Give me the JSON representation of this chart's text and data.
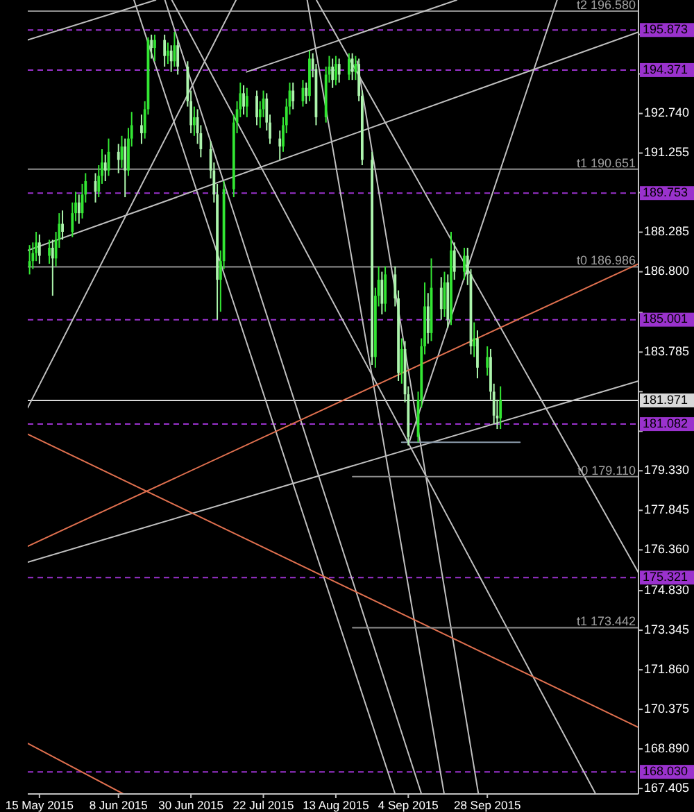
{
  "chart_data": {
    "type": "candlestick",
    "colors": [
      "#33e633",
      "#33e633",
      "#33e633",
      "#adf5ad",
      "#33e633",
      "#adf5ad",
      "#33e633",
      "#33e633",
      "#adf5ad",
      "#33e633",
      "#33e633",
      "#adf5ad",
      "#33e633",
      "#33e633",
      "#adf5ad",
      "#33e633",
      "#33e633",
      "#adf5ad",
      "#33e633",
      "#adf5ad",
      "#33e633",
      "#adf5ad",
      "#33e633",
      "#33e633",
      "#adf5ad",
      "#33e633",
      "#33e633",
      "#adf5ad",
      "#33e633",
      "#adf5ad",
      "#33e633",
      "#adf5ad",
      "#33e633",
      "#adf5ad",
      "#adf5ad",
      "#adf5ad",
      "#33e633",
      "#adf5ad",
      "#adf5ad",
      "#adf5ad",
      "#adf5ad",
      "#adf5ad",
      "#33e633",
      "#33e633",
      "#33e633",
      "#33e633",
      "#33e633",
      "#adf5ad",
      "#33e633",
      "#adf5ad",
      "#33e633",
      "#33e633",
      "#adf5ad",
      "#adf5ad",
      "#adf5ad",
      "#33e633",
      "#33e633",
      "#33e633",
      "#adf5ad",
      "#33e633",
      "#adf5ad",
      "#33e633",
      "#adf5ad",
      "#adf5ad",
      "#33e633",
      "#33e633",
      "#adf5ad",
      "#33e633",
      "#adf5ad",
      "#33e633",
      "#adf5ad",
      "#33e633",
      "#adf5ad",
      "#adf5ad",
      "#adf5ad",
      "#33e633",
      "#33e633",
      "#adf5ad",
      "#33e633",
      "#adf5ad",
      "#adf5ad",
      "#33e633",
      "#adf5ad",
      "#adf5ad",
      "#33e633",
      "#33e633",
      "#33e633",
      "#adf5ad",
      "#33e633",
      "#adf5ad",
      "#33e633",
      "#adf5ad",
      "#33e633",
      "#adf5ad",
      "#33e633",
      "#adf5ad",
      "#adf5ad",
      "#33e633",
      "#adf5ad",
      "#33e633",
      "#adf5ad",
      "#adf5ad",
      "#adf5ad",
      "#33e633"
    ],
    "x": [
      "2015-05-12",
      "2015-05-13",
      "2015-05-14",
      "2015-05-15",
      "2015-05-18",
      "2015-05-19",
      "2015-05-20",
      "2015-05-21",
      "2015-05-22",
      "2015-05-25",
      "2015-05-26",
      "2015-05-27",
      "2015-05-28",
      "2015-05-29",
      "2015-06-01",
      "2015-06-02",
      "2015-06-03",
      "2015-06-04",
      "2015-06-05",
      "2015-06-08",
      "2015-06-09",
      "2015-06-10",
      "2015-06-11",
      "2015-06-12",
      "2015-06-15",
      "2015-06-16",
      "2015-06-17",
      "2015-06-18",
      "2015-06-19",
      "2015-06-22",
      "2015-06-23",
      "2015-06-24",
      "2015-06-25",
      "2015-06-26",
      "2015-06-29",
      "2015-06-30",
      "2015-07-01",
      "2015-07-02",
      "2015-07-03",
      "2015-07-06",
      "2015-07-07",
      "2015-07-08",
      "2015-07-09",
      "2015-07-10",
      "2015-07-13",
      "2015-07-14",
      "2015-07-15",
      "2015-07-16",
      "2015-07-17",
      "2015-07-20",
      "2015-07-21",
      "2015-07-22",
      "2015-07-23",
      "2015-07-24",
      "2015-07-27",
      "2015-07-28",
      "2015-07-29",
      "2015-07-30",
      "2015-07-31",
      "2015-08-03",
      "2015-08-04",
      "2015-08-05",
      "2015-08-06",
      "2015-08-07",
      "2015-08-10",
      "2015-08-11",
      "2015-08-12",
      "2015-08-13",
      "2015-08-14",
      "2015-08-17",
      "2015-08-18",
      "2015-08-19",
      "2015-08-20",
      "2015-08-21",
      "2015-08-24",
      "2015-08-25",
      "2015-08-26",
      "2015-08-27",
      "2015-08-28",
      "2015-08-31",
      "2015-09-01",
      "2015-09-02",
      "2015-09-03",
      "2015-09-04",
      "2015-09-07",
      "2015-09-08",
      "2015-09-09",
      "2015-09-10",
      "2015-09-11",
      "2015-09-14",
      "2015-09-15",
      "2015-09-16",
      "2015-09-17",
      "2015-09-18",
      "2015-09-21",
      "2015-09-22",
      "2015-09-23",
      "2015-09-24",
      "2015-09-25",
      "2015-09-28",
      "2015-09-29",
      "2015-09-30",
      "2015-10-01",
      "2015-10-02"
    ],
    "ohlc": [
      [
        187.0,
        187.8,
        186.7,
        187.2
      ],
      [
        187.2,
        187.9,
        186.9,
        187.5
      ],
      [
        187.5,
        188.3,
        187.2,
        187.9
      ],
      [
        187.9,
        188.2,
        187.1,
        187.4
      ],
      [
        187.4,
        188.0,
        187.1,
        187.7
      ],
      [
        187.7,
        188.0,
        185.9,
        187.3
      ],
      [
        187.3,
        188.3,
        187.0,
        188.0
      ],
      [
        188.0,
        189.0,
        187.7,
        188.6
      ],
      [
        188.6,
        189.1,
        188.0,
        188.3
      ],
      [
        188.3,
        189.4,
        188.1,
        189.0
      ],
      [
        189.0,
        189.8,
        188.7,
        189.4
      ],
      [
        189.4,
        189.7,
        188.6,
        189.0
      ],
      [
        189.0,
        190.1,
        188.8,
        189.7
      ],
      [
        189.7,
        190.5,
        189.4,
        190.2
      ],
      [
        190.2,
        190.5,
        189.4,
        189.8
      ],
      [
        189.8,
        190.8,
        189.6,
        190.4
      ],
      [
        190.4,
        191.4,
        190.1,
        190.9
      ],
      [
        190.9,
        191.2,
        190.2,
        190.6
      ],
      [
        190.6,
        191.8,
        190.4,
        191.3
      ],
      [
        191.3,
        191.6,
        190.5,
        191.0
      ],
      [
        191.0,
        191.9,
        190.7,
        191.5
      ],
      [
        191.5,
        191.8,
        189.6,
        190.6
      ],
      [
        190.6,
        192.2,
        190.4,
        191.8
      ],
      [
        191.8,
        192.8,
        191.5,
        192.3
      ],
      [
        192.3,
        192.7,
        191.6,
        192.0
      ],
      [
        192.0,
        193.2,
        191.8,
        192.9
      ],
      [
        192.9,
        195.6,
        192.7,
        195.5
      ],
      [
        195.5,
        195.7,
        194.8,
        195.2
      ],
      [
        195.2,
        195.7,
        194.7,
        195.5
      ],
      [
        195.5,
        195.7,
        194.5,
        194.9
      ],
      [
        194.9,
        195.4,
        194.6,
        195.1
      ],
      [
        195.1,
        195.3,
        194.3,
        194.7
      ],
      [
        194.7,
        195.8,
        194.5,
        195.3
      ],
      [
        195.3,
        195.5,
        194.2,
        194.5
      ],
      [
        194.5,
        194.7,
        193.0,
        193.2
      ],
      [
        193.2,
        193.6,
        192.0,
        192.3
      ],
      [
        192.3,
        193.0,
        191.9,
        192.6
      ],
      [
        192.6,
        192.9,
        191.6,
        192.0
      ],
      [
        192.0,
        192.3,
        191.1,
        191.4
      ],
      [
        191.4,
        191.7,
        190.3,
        190.6
      ],
      [
        190.6,
        190.9,
        189.4,
        189.7
      ],
      [
        189.7,
        190.1,
        185.0,
        186.5
      ],
      [
        186.5,
        187.6,
        185.3,
        187.2
      ],
      [
        187.2,
        190.2,
        186.9,
        189.9
      ],
      [
        189.9,
        192.7,
        189.6,
        192.4
      ],
      [
        192.4,
        193.2,
        192.0,
        192.9
      ],
      [
        192.9,
        193.9,
        192.6,
        193.5
      ],
      [
        193.5,
        193.8,
        192.7,
        193.0
      ],
      [
        193.0,
        193.7,
        192.6,
        193.4
      ],
      [
        193.4,
        193.6,
        192.3,
        192.6
      ],
      [
        192.6,
        193.2,
        192.2,
        192.9
      ],
      [
        192.9,
        193.6,
        192.6,
        193.3
      ],
      [
        193.3,
        193.5,
        192.1,
        192.4
      ],
      [
        192.4,
        192.7,
        191.6,
        191.8
      ],
      [
        191.8,
        192.1,
        191.0,
        191.5
      ],
      [
        191.5,
        192.6,
        191.3,
        192.3
      ],
      [
        192.3,
        193.3,
        192.0,
        193.0
      ],
      [
        193.0,
        193.9,
        192.7,
        193.6
      ],
      [
        193.6,
        193.9,
        192.9,
        193.2
      ],
      [
        193.2,
        194.0,
        193.0,
        193.7
      ],
      [
        193.7,
        193.9,
        193.1,
        193.4
      ],
      [
        193.4,
        195.1,
        193.2,
        194.8
      ],
      [
        194.8,
        195.0,
        194.1,
        194.4
      ],
      [
        194.4,
        194.6,
        192.3,
        192.6
      ],
      [
        192.6,
        194.5,
        192.4,
        194.2
      ],
      [
        194.2,
        194.9,
        193.9,
        194.5
      ],
      [
        194.5,
        194.8,
        193.7,
        194.0
      ],
      [
        194.0,
        194.9,
        193.8,
        194.6
      ],
      [
        194.6,
        194.8,
        193.9,
        194.2
      ],
      [
        194.2,
        195.0,
        194.0,
        194.8
      ],
      [
        194.8,
        195.0,
        194.0,
        194.3
      ],
      [
        194.3,
        194.9,
        194.0,
        194.6
      ],
      [
        194.6,
        194.8,
        193.2,
        193.4
      ],
      [
        193.4,
        193.6,
        190.8,
        191.0
      ],
      [
        191.0,
        191.3,
        183.3,
        183.6
      ],
      [
        183.6,
        186.2,
        183.2,
        185.9
      ],
      [
        185.9,
        187.0,
        185.5,
        186.5
      ],
      [
        186.5,
        186.8,
        185.2,
        185.6
      ],
      [
        185.6,
        187.0,
        185.3,
        186.7
      ],
      [
        186.7,
        187.0,
        185.5,
        185.8
      ],
      [
        185.8,
        186.1,
        182.7,
        183.0
      ],
      [
        183.0,
        184.3,
        182.6,
        183.9
      ],
      [
        183.9,
        184.2,
        181.9,
        182.2
      ],
      [
        182.2,
        182.5,
        180.3,
        180.6
      ],
      [
        180.6,
        182.3,
        180.4,
        182.0
      ],
      [
        182.0,
        184.3,
        181.7,
        184.0
      ],
      [
        184.0,
        186.4,
        183.7,
        185.5
      ],
      [
        185.5,
        186.0,
        184.1,
        184.5
      ],
      [
        184.5,
        187.3,
        184.2,
        186.2
      ],
      [
        186.2,
        186.6,
        185.0,
        185.4
      ],
      [
        185.4,
        186.8,
        185.1,
        186.4
      ],
      [
        186.4,
        186.7,
        184.7,
        185.0
      ],
      [
        185.0,
        188.3,
        184.8,
        187.6
      ],
      [
        187.6,
        187.9,
        186.5,
        186.8
      ],
      [
        186.8,
        187.7,
        186.5,
        187.4
      ],
      [
        187.4,
        187.7,
        186.3,
        186.7
      ],
      [
        186.7,
        186.9,
        183.7,
        184.0
      ],
      [
        184.0,
        184.9,
        183.6,
        184.3
      ],
      [
        184.3,
        184.6,
        182.8,
        183.2
      ],
      [
        183.2,
        184.0,
        182.9,
        183.6
      ],
      [
        183.6,
        183.9,
        182.0,
        182.3
      ],
      [
        182.3,
        182.6,
        181.1,
        181.4
      ],
      [
        181.4,
        182.0,
        180.9,
        181.3
      ],
      [
        181.3,
        182.5,
        180.9,
        182.0
      ]
    ],
    "xlim": [
      "2015-05-11T10:48",
      "2015-11-12T21:36"
    ],
    "ylim": [
      167.2,
      197.0
    ],
    "xticks": [
      {
        "value": "2015-05-15",
        "label": "15 May 2015"
      },
      {
        "value": "2015-06-08",
        "label": "8 Jun 2015"
      },
      {
        "value": "2015-06-30",
        "label": "30 Jun 2015"
      },
      {
        "value": "2015-07-22",
        "label": "22 Jul 2015"
      },
      {
        "value": "2015-08-13",
        "label": "13 Aug 2015"
      },
      {
        "value": "2015-09-04",
        "label": "4 Sep 2015"
      },
      {
        "value": "2015-09-28",
        "label": "28 Sep 2015"
      }
    ],
    "yticks": [
      {
        "value": 195.71,
        "label": null
      },
      {
        "value": 194.225,
        "label": null
      },
      {
        "value": 192.74,
        "label": "192.740"
      },
      {
        "value": 191.255,
        "label": "191.255"
      },
      {
        "value": 189.77,
        "label": null
      },
      {
        "value": 188.285,
        "label": "188.285"
      },
      {
        "value": 186.8,
        "label": "186.800"
      },
      {
        "value": 185.27,
        "label": null
      },
      {
        "value": 183.785,
        "label": "183.785"
      },
      {
        "value": 182.3,
        "label": null
      },
      {
        "value": 180.815,
        "label": null
      },
      {
        "value": 179.33,
        "label": "179.330"
      },
      {
        "value": 177.845,
        "label": "177.845"
      },
      {
        "value": 176.36,
        "label": "176.360"
      },
      {
        "value": 174.83,
        "label": "174.830"
      },
      {
        "value": 173.345,
        "label": "173.345"
      },
      {
        "value": 171.86,
        "label": "171.860"
      },
      {
        "value": 170.375,
        "label": "170.375"
      },
      {
        "value": 168.89,
        "label": "168.890"
      },
      {
        "value": 167.405,
        "label": "167.405"
      }
    ],
    "series": [
      {
        "type": "line",
        "color": "#c0c0c0",
        "x": [
          "2015-05-11T10:48",
          "2015-06-19T07:12"
        ],
        "values": [
          195.5,
          197.0
        ]
      },
      {
        "type": "line",
        "color": "#c0c0c0",
        "x": [
          "2015-05-11T10:48",
          "2015-11-12T21:36"
        ],
        "values": [
          187.6,
          195.8
        ]
      },
      {
        "type": "line",
        "color": "#c0c0c0",
        "x": [
          "2015-07-16T21:36",
          "2015-09-18T16:48"
        ],
        "values": [
          194.3,
          197.0
        ]
      },
      {
        "type": "line",
        "color": "#c0c0c0",
        "x": [
          "2015-05-11T10:48",
          "2015-11-12T21:36"
        ],
        "values": [
          175.9,
          182.7
        ]
      },
      {
        "type": "line",
        "color": "#c0c0c0",
        "x": [
          "2015-05-11T10:48",
          "2015-07-13T16:48"
        ],
        "values": [
          181.7,
          197.0
        ]
      },
      {
        "type": "line",
        "color": "#c0c0c0",
        "x": [
          "2015-06-12T16:48",
          "2015-08-31"
        ],
        "values": [
          197.0,
          167.2
        ]
      },
      {
        "type": "line",
        "color": "#c0c0c0",
        "x": [
          "2015-06-22T02:24",
          "2015-09-08"
        ],
        "values": [
          197.0,
          167.2
        ]
      },
      {
        "type": "line",
        "color": "#c0c0c0",
        "x": [
          "2015-06-24T04:48",
          "2015-10-30T21:36"
        ],
        "values": [
          197.0,
          167.2
        ]
      },
      {
        "type": "line",
        "color": "#c0c0c0",
        "x": [
          "2015-08-04T07:12",
          "2015-09-14T21:36"
        ],
        "values": [
          197.0,
          167.2
        ]
      },
      {
        "type": "line",
        "color": "#c0c0c0",
        "x": [
          "2015-08-07T02:24",
          "2015-11-12T21:36"
        ],
        "values": [
          197.0,
          175.5
        ]
      },
      {
        "type": "line",
        "color": "#c0c0c0",
        "x": [
          "2015-09-04",
          "2015-10-19T04:48"
        ],
        "values": [
          180.3,
          197.0
        ]
      },
      {
        "type": "line",
        "color": "#c0c0c0",
        "x": [
          "2015-08-19T12:00",
          "2015-09-25T07:12"
        ],
        "values": [
          194.7,
          167.2
        ]
      },
      {
        "type": "line",
        "color": "#e0704f",
        "x": [
          "2015-05-11T10:48",
          "2015-11-12T21:36"
        ],
        "values": [
          176.5,
          187.1
        ]
      },
      {
        "type": "line",
        "color": "#e0704f",
        "x": [
          "2015-05-11T10:48",
          "2015-11-12T21:36"
        ],
        "values": [
          180.7,
          169.7
        ]
      },
      {
        "type": "line",
        "color": "#e0704f",
        "x": [
          "2015-05-11T10:48",
          "2015-06-09T12:00"
        ],
        "values": [
          169.1,
          167.2
        ]
      },
      {
        "type": "line",
        "color": "#909090",
        "x": [
          "2015-08-18T02:24",
          "2015-11-12T21:36"
        ],
        "values": [
          179.11,
          179.11
        ]
      },
      {
        "type": "line",
        "color": "#909090",
        "x": [
          "2015-08-18T02:24",
          "2015-11-12T21:36"
        ],
        "values": [
          173.44,
          173.44
        ]
      },
      {
        "type": "line",
        "color": "#8c9cac",
        "x": [
          "2015-09-02",
          "2015-10-07T21:36"
        ],
        "values": [
          180.4,
          180.4
        ]
      }
    ],
    "ref_lines": [
      {
        "axis": "y",
        "value": 196.58,
        "color": "#909090",
        "line_style": "solid"
      },
      {
        "axis": "y",
        "value": 190.651,
        "color": "#909090",
        "line_style": "solid"
      },
      {
        "axis": "y",
        "value": 186.986,
        "color": "#909090",
        "line_style": "solid"
      },
      {
        "axis": "y",
        "value": 181.971,
        "label": "181.971",
        "color": "#d8d8d8",
        "line_style": "solid"
      },
      {
        "axis": "y",
        "value": 195.873,
        "label": "195.873",
        "color": "#9a32cd",
        "line_style": "dashed"
      },
      {
        "axis": "y",
        "value": 194.371,
        "label": "194.371",
        "color": "#9a32cd",
        "line_style": "dashed"
      },
      {
        "axis": "y",
        "value": 189.753,
        "label": "189.753",
        "color": "#9a32cd",
        "line_style": "dashed"
      },
      {
        "axis": "y",
        "value": 185.001,
        "label": "185.001",
        "color": "#9a32cd",
        "line_style": "dashed"
      },
      {
        "axis": "y",
        "value": 181.082,
        "label": "181.082",
        "color": "#9a32cd",
        "line_style": "dashed"
      },
      {
        "axis": "y",
        "value": 175.321,
        "label": "175.321",
        "color": "#9a32cd",
        "line_style": "dashed"
      },
      {
        "axis": "y",
        "value": 168.03,
        "label": "168.030",
        "color": "#9a32cd",
        "line_style": "dashed"
      }
    ],
    "annotations": [
      {
        "text": "t2 196.580",
        "x": "2015-11-12T21:36",
        "y": 196.58
      },
      {
        "text": "t1 190.651",
        "x": "2015-11-12T21:36",
        "y": 190.651
      },
      {
        "text": "t0 186.986",
        "x": "2015-11-12T21:36",
        "y": 186.986
      },
      {
        "text": "t0 179.110",
        "x": "2015-11-12T21:36",
        "y": 179.11
      },
      {
        "text": "t1 173.442",
        "x": "2015-11-12T21:36",
        "y": 173.442
      }
    ]
  }
}
